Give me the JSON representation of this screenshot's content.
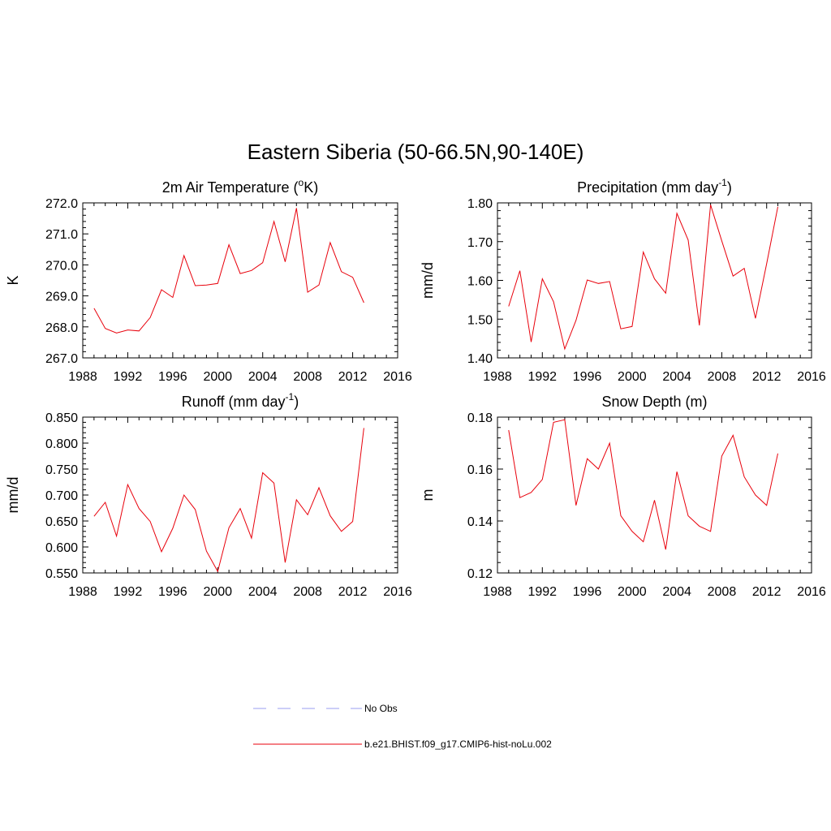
{
  "figure": {
    "title": "Eastern Siberia (50-66.5N,90-140E)"
  },
  "colors": {
    "model_line": "#e8000b",
    "obs_line": "#9a9cf2",
    "axis": "#000000"
  },
  "legend": {
    "items": [
      {
        "label": "No Obs",
        "style": "dashed",
        "color": "#9a9cf2"
      },
      {
        "label": "b.e21.BHIST.f09_g17.CMIP6-hist-noLu.002",
        "style": "solid",
        "color": "#e8000b"
      }
    ]
  },
  "chart_data": [
    {
      "type": "line",
      "title": "2m Air Temperature (",
      "title_sup": "o",
      "title_after": "K)",
      "ylabel": "K",
      "xlim": [
        1988,
        2016
      ],
      "ylim": [
        267.0,
        272.0
      ],
      "xticks": [
        1988,
        1992,
        1996,
        2000,
        2004,
        2008,
        2012,
        2016
      ],
      "yticks": [
        "267.0",
        "268.0",
        "269.0",
        "270.0",
        "271.0",
        "272.0"
      ],
      "series": [
        {
          "x": [
            1989,
            1990,
            1991,
            1992,
            1993,
            1994,
            1995,
            1996,
            1997,
            1998,
            1999,
            2000,
            2001,
            2002,
            2003,
            2004,
            2005,
            2006,
            2007,
            2008,
            2009,
            2010,
            2011,
            2012,
            2013
          ],
          "y": [
            268.6,
            267.95,
            267.8,
            267.9,
            267.87,
            268.3,
            269.2,
            268.95,
            270.3,
            269.33,
            269.35,
            269.4,
            270.65,
            269.72,
            269.82,
            270.07,
            271.4,
            270.1,
            271.83,
            269.12,
            269.35,
            270.72,
            269.78,
            269.6,
            268.78
          ]
        }
      ]
    },
    {
      "type": "line",
      "title": "Precipitation (mm day",
      "title_sup": "-1",
      "title_after": ")",
      "ylabel": "mm/d",
      "xlim": [
        1988,
        2016
      ],
      "ylim": [
        1.4,
        1.8
      ],
      "xticks": [
        1988,
        1992,
        1996,
        2000,
        2004,
        2008,
        2012,
        2016
      ],
      "yticks": [
        "1.40",
        "1.50",
        "1.60",
        "1.70",
        "1.80"
      ],
      "series": [
        {
          "x": [
            1989,
            1990,
            1991,
            1992,
            1993,
            1994,
            1995,
            1996,
            1997,
            1998,
            1999,
            2000,
            2001,
            2002,
            2003,
            2004,
            2005,
            2006,
            2007,
            2008,
            2009,
            2010,
            2011,
            2012,
            2013
          ],
          "y": [
            1.533,
            1.625,
            1.441,
            1.604,
            1.545,
            1.423,
            1.497,
            1.601,
            1.592,
            1.597,
            1.475,
            1.481,
            1.673,
            1.604,
            1.567,
            1.773,
            1.704,
            1.484,
            1.795,
            1.702,
            1.611,
            1.631,
            1.502,
            1.643,
            1.79
          ]
        }
      ]
    },
    {
      "type": "line",
      "title": "Runoff (mm day",
      "title_sup": "-1",
      "title_after": ")",
      "ylabel": "mm/d",
      "xlim": [
        1988,
        2016
      ],
      "ylim": [
        0.55,
        0.85
      ],
      "xticks": [
        1988,
        1992,
        1996,
        2000,
        2004,
        2008,
        2012,
        2016
      ],
      "yticks": [
        "0.550",
        "0.600",
        "0.650",
        "0.700",
        "0.750",
        "0.800",
        "0.850"
      ],
      "series": [
        {
          "x": [
            1989,
            1990,
            1991,
            1992,
            1993,
            1994,
            1995,
            1996,
            1997,
            1998,
            1999,
            2000,
            2001,
            2002,
            2003,
            2004,
            2005,
            2006,
            2007,
            2008,
            2009,
            2010,
            2011,
            2012,
            2013
          ],
          "y": [
            0.659,
            0.686,
            0.621,
            0.72,
            0.674,
            0.649,
            0.591,
            0.636,
            0.7,
            0.672,
            0.592,
            0.553,
            0.637,
            0.674,
            0.617,
            0.743,
            0.723,
            0.57,
            0.691,
            0.662,
            0.714,
            0.66,
            0.63,
            0.649,
            0.829
          ]
        }
      ]
    },
    {
      "type": "line",
      "title": "Snow Depth (m)",
      "title_sup": "",
      "title_after": "",
      "ylabel": "m",
      "xlim": [
        1988,
        2016
      ],
      "ylim": [
        0.12,
        0.18
      ],
      "xticks": [
        1988,
        1992,
        1996,
        2000,
        2004,
        2008,
        2012,
        2016
      ],
      "yticks": [
        "0.12",
        "0.14",
        "0.16",
        "0.18"
      ],
      "series": [
        {
          "x": [
            1989,
            1990,
            1991,
            1992,
            1993,
            1994,
            1995,
            1996,
            1997,
            1998,
            1999,
            2000,
            2001,
            2002,
            2003,
            2004,
            2005,
            2006,
            2007,
            2008,
            2009,
            2010,
            2011,
            2012,
            2013
          ],
          "y": [
            0.175,
            0.149,
            0.151,
            0.156,
            0.178,
            0.179,
            0.146,
            0.164,
            0.16,
            0.17,
            0.142,
            0.136,
            0.132,
            0.148,
            0.129,
            0.159,
            0.142,
            0.138,
            0.136,
            0.165,
            0.173,
            0.157,
            0.15,
            0.146,
            0.166
          ]
        }
      ]
    }
  ]
}
